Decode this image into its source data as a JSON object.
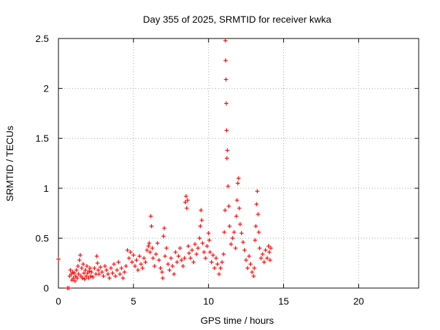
{
  "chart_data": {
    "type": "scatter",
    "title": "Day 355 of 2025, SRMTID for receiver kwka",
    "xlabel": "GPS time / hours",
    "ylabel": "SRMTID / TECUs",
    "xlim": [
      0,
      24
    ],
    "ylim": [
      0,
      2.5
    ],
    "xticks": [
      0,
      5,
      10,
      15,
      20
    ],
    "xtick_labels": [
      "0",
      "5",
      "10",
      "15",
      "20"
    ],
    "yticks": [
      0,
      0.5,
      1,
      1.5,
      2,
      2.5
    ],
    "ytick_labels": [
      "0",
      "0.5",
      "1",
      "1.5",
      "2",
      "2.5"
    ],
    "grid": true,
    "marker": "+",
    "color": "#ff0000",
    "series": [
      {
        "name": "SRMTID",
        "x": [
          0.0,
          0.6,
          0.7,
          0.75,
          0.8,
          0.85,
          0.9,
          0.95,
          1.0,
          1.05,
          1.1,
          1.15,
          1.2,
          1.25,
          1.3,
          1.35,
          1.4,
          1.45,
          1.5,
          1.55,
          1.6,
          1.65,
          1.7,
          1.75,
          1.8,
          1.85,
          1.9,
          1.95,
          2.0,
          2.05,
          2.1,
          2.15,
          2.2,
          2.3,
          2.4,
          2.5,
          2.55,
          2.6,
          2.65,
          2.7,
          2.8,
          2.9,
          3.0,
          3.1,
          3.2,
          3.3,
          3.4,
          3.5,
          3.6,
          3.7,
          3.8,
          3.9,
          4.0,
          4.1,
          4.2,
          4.3,
          4.4,
          4.5,
          4.6,
          4.7,
          4.8,
          4.9,
          5.0,
          5.1,
          5.2,
          5.3,
          5.4,
          5.5,
          5.6,
          5.7,
          5.8,
          5.9,
          6.0,
          6.05,
          6.1,
          6.15,
          6.2,
          6.25,
          6.3,
          6.4,
          6.5,
          6.6,
          6.7,
          6.8,
          6.9,
          6.95,
          7.0,
          7.05,
          7.1,
          7.2,
          7.3,
          7.4,
          7.5,
          7.6,
          7.7,
          7.8,
          7.9,
          8.0,
          8.1,
          8.2,
          8.3,
          8.4,
          8.45,
          8.5,
          8.55,
          8.6,
          8.65,
          8.7,
          8.8,
          8.9,
          9.0,
          9.1,
          9.2,
          9.3,
          9.4,
          9.45,
          9.5,
          9.55,
          9.6,
          9.7,
          9.8,
          9.9,
          10.0,
          10.05,
          10.1,
          10.2,
          10.3,
          10.4,
          10.5,
          10.6,
          10.7,
          10.8,
          10.9,
          11.0,
          11.05,
          11.1,
          11.12,
          11.14,
          11.16,
          11.18,
          11.2,
          11.22,
          11.25,
          11.3,
          11.35,
          11.4,
          11.5,
          11.6,
          11.7,
          11.8,
          11.85,
          11.9,
          11.95,
          12.0,
          12.05,
          12.1,
          12.2,
          12.3,
          12.4,
          12.5,
          12.6,
          12.7,
          12.8,
          12.9,
          13.0,
          13.05,
          13.1,
          13.15,
          13.2,
          13.25,
          13.3,
          13.35,
          13.4,
          13.5,
          13.6,
          13.7,
          13.8,
          13.9,
          14.0,
          14.05,
          14.1,
          14.15
        ],
        "values": [
          0.29,
          0.0,
          0.0,
          0.12,
          0.18,
          0.14,
          0.08,
          0.16,
          0.1,
          0.15,
          0.07,
          0.12,
          0.18,
          0.1,
          0.22,
          0.14,
          0.28,
          0.33,
          0.12,
          0.2,
          0.1,
          0.24,
          0.15,
          0.09,
          0.18,
          0.12,
          0.22,
          0.15,
          0.1,
          0.17,
          0.2,
          0.12,
          0.16,
          0.11,
          0.2,
          0.14,
          0.32,
          0.25,
          0.18,
          0.14,
          0.21,
          0.16,
          0.12,
          0.22,
          0.18,
          0.14,
          0.1,
          0.2,
          0.15,
          0.24,
          0.12,
          0.18,
          0.26,
          0.14,
          0.2,
          0.1,
          0.16,
          0.22,
          0.38,
          0.3,
          0.36,
          0.26,
          0.33,
          0.22,
          0.28,
          0.18,
          0.32,
          0.24,
          0.2,
          0.3,
          0.26,
          0.38,
          0.42,
          0.45,
          0.36,
          0.72,
          0.62,
          0.4,
          0.3,
          0.22,
          0.34,
          0.45,
          0.28,
          0.2,
          0.16,
          0.1,
          0.52,
          0.6,
          0.32,
          0.4,
          0.24,
          0.18,
          0.3,
          0.22,
          0.14,
          0.36,
          0.26,
          0.32,
          0.4,
          0.28,
          0.22,
          0.3,
          0.86,
          0.92,
          0.8,
          0.88,
          0.42,
          0.35,
          0.3,
          0.38,
          0.26,
          0.44,
          0.34,
          0.4,
          0.5,
          0.62,
          0.78,
          0.68,
          0.45,
          0.36,
          0.3,
          0.42,
          0.55,
          0.48,
          0.36,
          0.26,
          0.33,
          0.2,
          0.3,
          0.24,
          0.14,
          0.2,
          0.26,
          0.34,
          0.56,
          0.78,
          2.48,
          2.28,
          2.09,
          1.85,
          1.58,
          1.3,
          1.38,
          1.02,
          0.82,
          0.62,
          0.44,
          0.5,
          0.56,
          0.4,
          0.72,
          0.88,
          1.05,
          1.1,
          0.8,
          0.64,
          0.55,
          0.46,
          0.38,
          0.28,
          0.2,
          0.32,
          0.24,
          0.16,
          0.12,
          0.2,
          0.48,
          0.62,
          0.84,
          0.97,
          0.74,
          0.56,
          0.4,
          0.3,
          0.34,
          0.26,
          0.38,
          0.3,
          0.42,
          0.36,
          0.28,
          0.4
        ]
      }
    ]
  }
}
